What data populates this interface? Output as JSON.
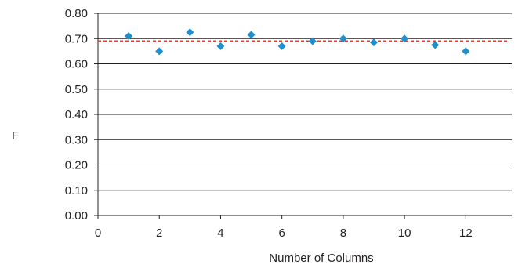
{
  "chart_data": {
    "type": "scatter",
    "xlabel": "Number of Columns",
    "ylabel": "F",
    "xlim": [
      0,
      13.5
    ],
    "ylim": [
      0,
      0.8
    ],
    "x_ticks": [
      0,
      2,
      4,
      6,
      8,
      10,
      12
    ],
    "y_ticks": [
      0.0,
      0.1,
      0.2,
      0.3,
      0.4,
      0.5,
      0.6,
      0.7,
      0.8
    ],
    "x_tick_labels": [
      "0",
      "2",
      "4",
      "6",
      "8",
      "10",
      "12"
    ],
    "y_tick_labels": [
      "0.00",
      "0.10",
      "0.20",
      "0.30",
      "0.40",
      "0.50",
      "0.60",
      "0.70",
      "0.80"
    ],
    "grid": "horizontal",
    "series": [
      {
        "marker": "diamond",
        "color": "#1f8fce",
        "x": [
          1,
          2,
          3,
          4,
          5,
          6,
          7,
          8,
          9,
          10,
          11,
          12
        ],
        "y": [
          0.71,
          0.65,
          0.725,
          0.67,
          0.715,
          0.67,
          0.69,
          0.7,
          0.685,
          0.7,
          0.675,
          0.65
        ]
      }
    ],
    "reference_line": {
      "y": 0.69,
      "style": "dashed",
      "color": "#e03c31"
    }
  }
}
